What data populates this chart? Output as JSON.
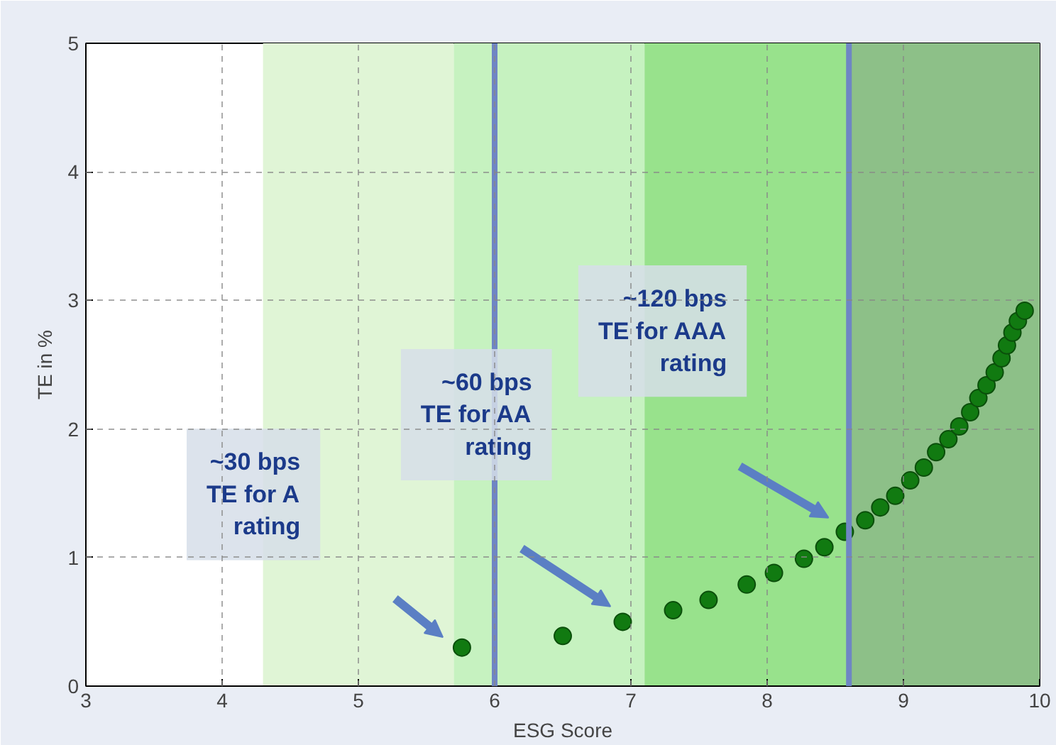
{
  "chart_data": {
    "type": "scatter",
    "xlabel": "ESG Score",
    "ylabel": "TE in %",
    "x": [
      5.76,
      6.5,
      6.94,
      7.31,
      7.57,
      7.85,
      8.05,
      8.27,
      8.42,
      8.57,
      8.72,
      8.83,
      8.94,
      9.05,
      9.15,
      9.24,
      9.33,
      9.41,
      9.49,
      9.55,
      9.61,
      9.67,
      9.72,
      9.76,
      9.8,
      9.84,
      9.89
    ],
    "series": [
      {
        "color": "#117a11",
        "values": [
          0.3,
          0.39,
          0.5,
          0.59,
          0.67,
          0.79,
          0.88,
          0.99,
          1.08,
          1.2,
          1.29,
          1.39,
          1.48,
          1.6,
          1.7,
          1.82,
          1.92,
          2.02,
          2.13,
          2.24,
          2.34,
          2.44,
          2.55,
          2.65,
          2.75,
          2.84,
          2.92
        ]
      }
    ],
    "xlim": [
      3,
      10
    ],
    "ylim": [
      0,
      5
    ],
    "xticks": [
      3,
      4,
      5,
      6,
      7,
      8,
      9,
      10
    ],
    "yticks": [
      0,
      1,
      2,
      3,
      4,
      5
    ],
    "grid": true,
    "marker": "circle",
    "bands": [
      {
        "axis": "x",
        "from": 4.3,
        "to": 5.7,
        "color": "#e0f5d6"
      },
      {
        "axis": "x",
        "from": 5.7,
        "to": 7.1,
        "color": "#c6f2c0"
      },
      {
        "axis": "x",
        "from": 7.1,
        "to": 8.6,
        "color": "#98e28c"
      },
      {
        "axis": "x",
        "from": 8.6,
        "to": 10,
        "color": "#8dc088"
      }
    ],
    "ref_lines": [
      {
        "axis": "x",
        "value": 6,
        "color": "#6f86c4"
      },
      {
        "axis": "x",
        "value": 8.6,
        "color": "#6f86c4"
      }
    ],
    "annotations": [
      "~30 bps\nTE for A\nrating",
      "~60 bps\nTE for AA\nrating",
      "~120 bps\nTE for AAA\nrating"
    ]
  }
}
